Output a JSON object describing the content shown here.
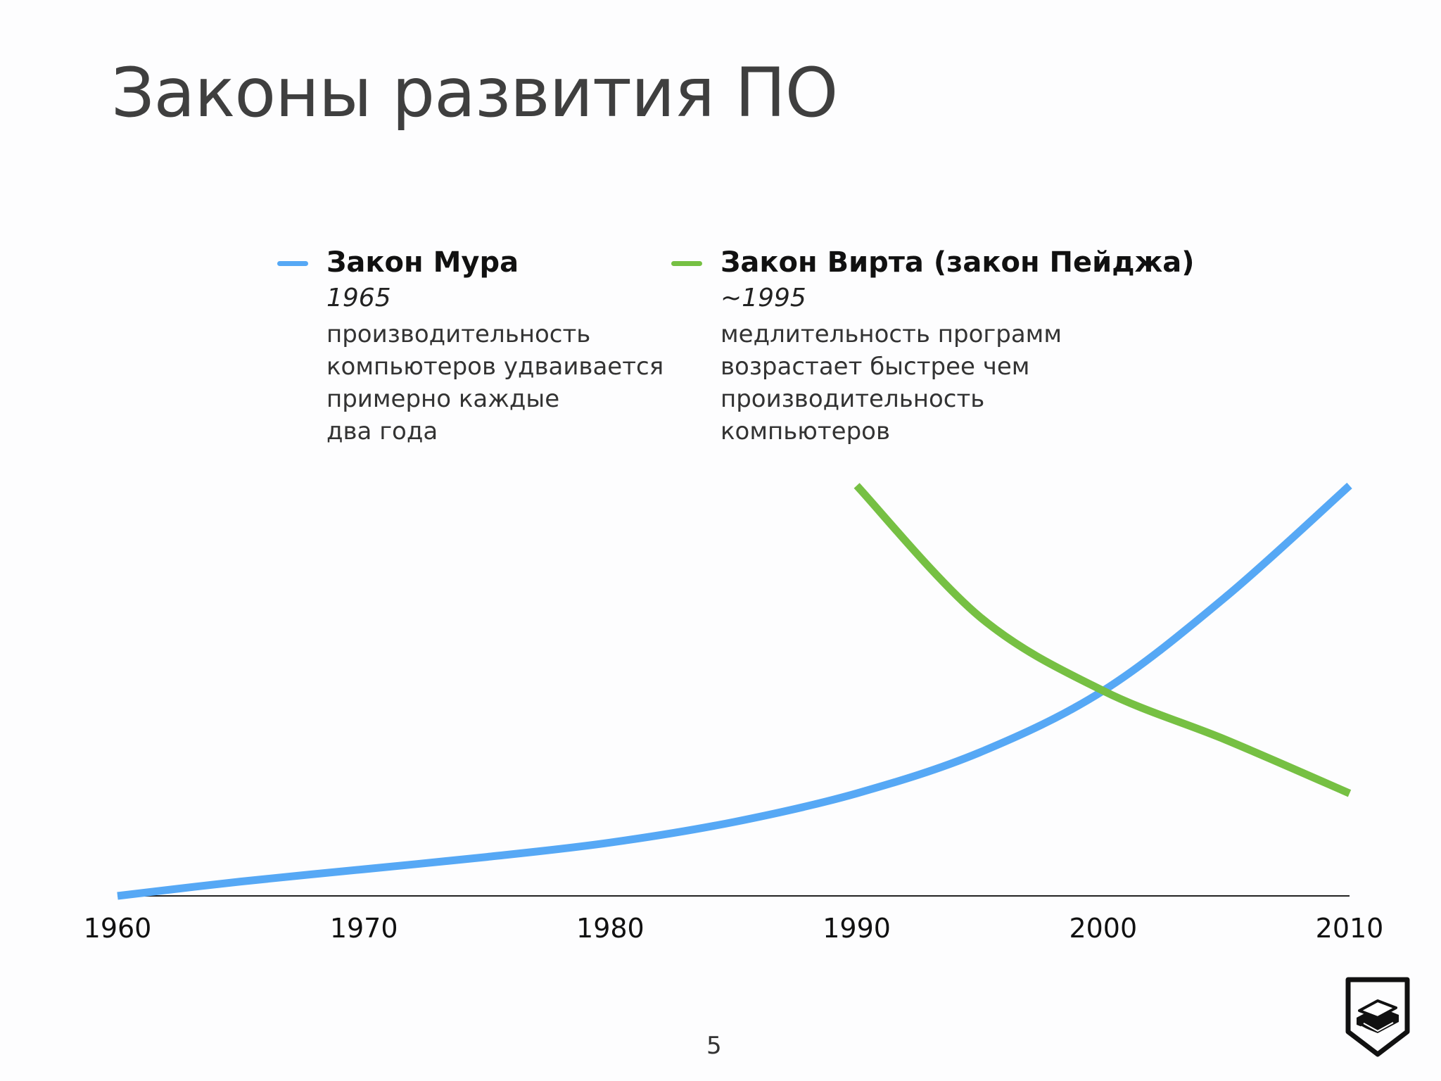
{
  "slide": {
    "title": "Законы развития ПО",
    "page_number": "5",
    "logo_icon": "stacked-books-shield-logo"
  },
  "legend": {
    "moore": {
      "name": "Закон Мура",
      "year": "1965",
      "description_lines": [
        "производительность",
        "компьютеров удваивается",
        "примерно каждые",
        "два года"
      ],
      "color": "#56a8f5"
    },
    "wirth": {
      "name": "Закон Вирта (закон Пейджа)",
      "year": "~1995",
      "description_lines": [
        "медлительность программ",
        "возрастает быстрее чем",
        "производительность",
        "компьютеров"
      ],
      "color": "#76c043"
    }
  },
  "chart_data": {
    "type": "line",
    "xlabel": "",
    "ylabel": "",
    "xlim": [
      1960,
      2010
    ],
    "ylim": [
      0,
      100
    ],
    "x_ticks": [
      "1960",
      "1970",
      "1980",
      "1990",
      "2000",
      "2010"
    ],
    "y_axis_visible": false,
    "grid": false,
    "legend_position": "top",
    "series": [
      {
        "name": "Закон Мура",
        "color": "#56a8f5",
        "x": [
          1960,
          1965,
          1970,
          1975,
          1980,
          1985,
          1990,
          1995,
          2000,
          2005,
          2010
        ],
        "y": [
          0,
          3.5,
          6.5,
          9.5,
          13,
          18,
          25,
          35,
          50,
          73,
          100
        ]
      },
      {
        "name": "Закон Вирта (закон Пейджа)",
        "color": "#76c043",
        "x": [
          1990,
          1995,
          2000,
          2005,
          2010
        ],
        "y": [
          100,
          68,
          50,
          38,
          25
        ]
      }
    ]
  }
}
